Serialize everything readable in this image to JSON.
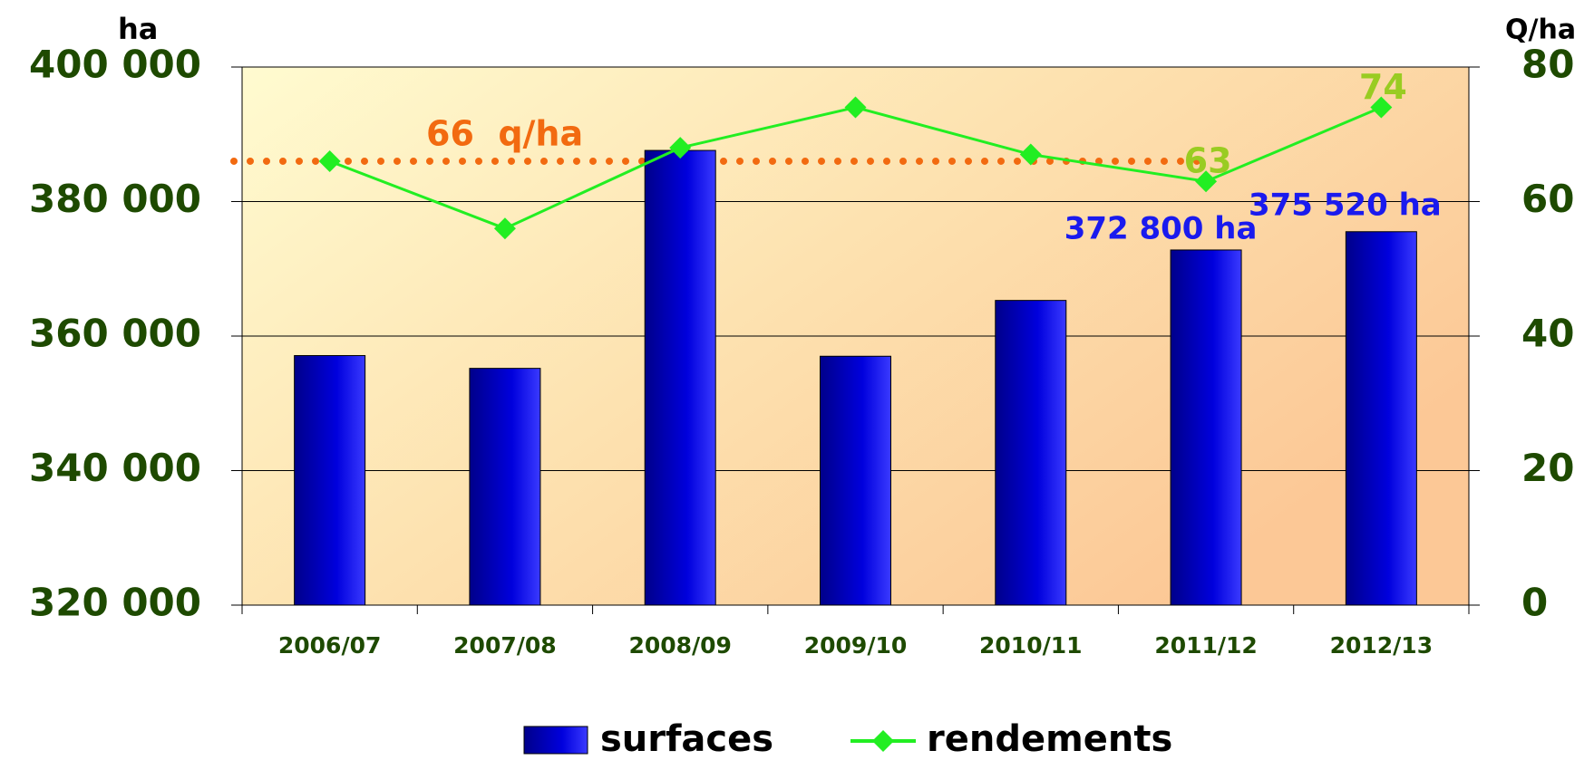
{
  "chart_data": {
    "type": "bar_line",
    "y_label": "ha",
    "y2_label": "Q/ha",
    "categories": [
      "2006/07",
      "2007/08",
      "2008/09",
      "2009/10",
      "2010/11",
      "2011/12",
      "2012/13"
    ],
    "series": [
      {
        "name": "surfaces",
        "type": "bar",
        "color": "#0000cc",
        "values": [
          357100,
          355200,
          387600,
          357000,
          365300,
          372800,
          375520
        ],
        "value_labels": [
          null,
          null,
          null,
          null,
          null,
          "372 800 ha",
          "375 520 ha"
        ],
        "label_color": "#1a1aee"
      },
      {
        "name": "rendements",
        "type": "line",
        "axis": "y2",
        "color": "#22ee22",
        "values": [
          66,
          56,
          68,
          74,
          67,
          63,
          74
        ],
        "value_labels": [
          null,
          null,
          null,
          null,
          null,
          "63",
          "74"
        ],
        "label_color": "#99cc22"
      }
    ],
    "annotation": {
      "text": "66  q/ha",
      "value": 66,
      "color": "#f26a10"
    },
    "ylim": [
      320000,
      400000
    ],
    "yticks": [
      {
        "value": 320000,
        "label": "320 000"
      },
      {
        "value": 340000,
        "label": "340 000"
      },
      {
        "value": 360000,
        "label": "360 000"
      },
      {
        "value": 380000,
        "label": "380 000"
      },
      {
        "value": 400000,
        "label": "400 000"
      }
    ],
    "y2lim": [
      0,
      80
    ],
    "y2ticks": [
      0,
      20,
      40,
      60,
      80
    ],
    "grid": true
  }
}
